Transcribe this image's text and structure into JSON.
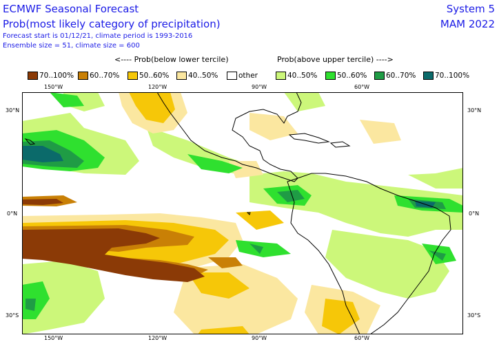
{
  "header": {
    "title": "ECMWF Seasonal Forecast",
    "subtitle": "Prob(most likely category of precipitation)",
    "line3": "Forecast start is 01/12/21, climate period is 1993-2016",
    "line4": "Ensemble size = 51, climate size = 600",
    "system": "System 5",
    "period": "MAM 2022"
  },
  "legend": {
    "below_label": "<---- Prob(below lower tercile)",
    "above_label": "Prob(above upper tercile) ---->",
    "items": [
      {
        "label": "70..100%",
        "color": "#8b3a06"
      },
      {
        "label": "60..70%",
        "color": "#c98006"
      },
      {
        "label": "50..60%",
        "color": "#f6c708"
      },
      {
        "label": "40..50%",
        "color": "#fbe7a0"
      },
      {
        "label": "other",
        "color": "#ffffff"
      },
      {
        "label": "40..50%",
        "color": "#ccf77a"
      },
      {
        "label": "50..60%",
        "color": "#2fe02f"
      },
      {
        "label": "60..70%",
        "color": "#1f9c45"
      },
      {
        "label": "70..100%",
        "color": "#0b6a6a"
      }
    ]
  },
  "axes": {
    "lon_labels": [
      "150°W",
      "120°W",
      "90°W",
      "60°W"
    ],
    "lat_labels": [
      "30°N",
      "0°N",
      "30°S"
    ]
  }
}
